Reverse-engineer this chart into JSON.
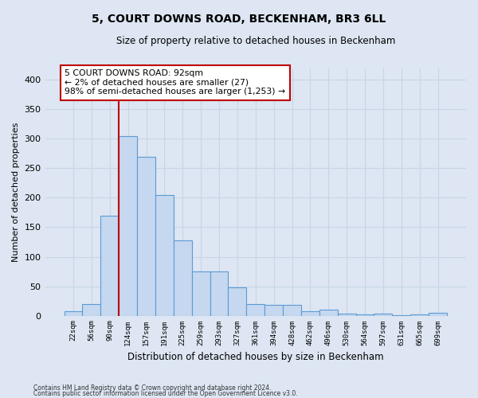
{
  "title": "5, COURT DOWNS ROAD, BECKENHAM, BR3 6LL",
  "subtitle": "Size of property relative to detached houses in Beckenham",
  "xlabel": "Distribution of detached houses by size in Beckenham",
  "ylabel": "Number of detached properties",
  "bar_labels": [
    "22sqm",
    "56sqm",
    "90sqm",
    "124sqm",
    "157sqm",
    "191sqm",
    "225sqm",
    "259sqm",
    "293sqm",
    "327sqm",
    "361sqm",
    "394sqm",
    "428sqm",
    "462sqm",
    "496sqm",
    "530sqm",
    "564sqm",
    "597sqm",
    "631sqm",
    "665sqm",
    "699sqm"
  ],
  "bar_values": [
    8,
    20,
    170,
    305,
    270,
    205,
    128,
    75,
    75,
    48,
    20,
    18,
    18,
    7,
    10,
    4,
    2,
    3,
    1,
    2,
    5
  ],
  "bar_color": "#c5d8ef",
  "bar_edge_color": "#5b9bd5",
  "vline_color": "#c00000",
  "annotation_text": "5 COURT DOWNS ROAD: 92sqm\n← 2% of detached houses are smaller (27)\n98% of semi-detached houses are larger (1,253) →",
  "annotation_box_facecolor": "#ffffff",
  "annotation_box_edgecolor": "#c00000",
  "ylim": [
    0,
    420
  ],
  "yticks": [
    0,
    50,
    100,
    150,
    200,
    250,
    300,
    350,
    400
  ],
  "grid_color": "#c8d4e8",
  "background_color": "#dde6f2",
  "footer1": "Contains HM Land Registry data © Crown copyright and database right 2024.",
  "footer2": "Contains public sector information licensed under the Open Government Licence v3.0."
}
